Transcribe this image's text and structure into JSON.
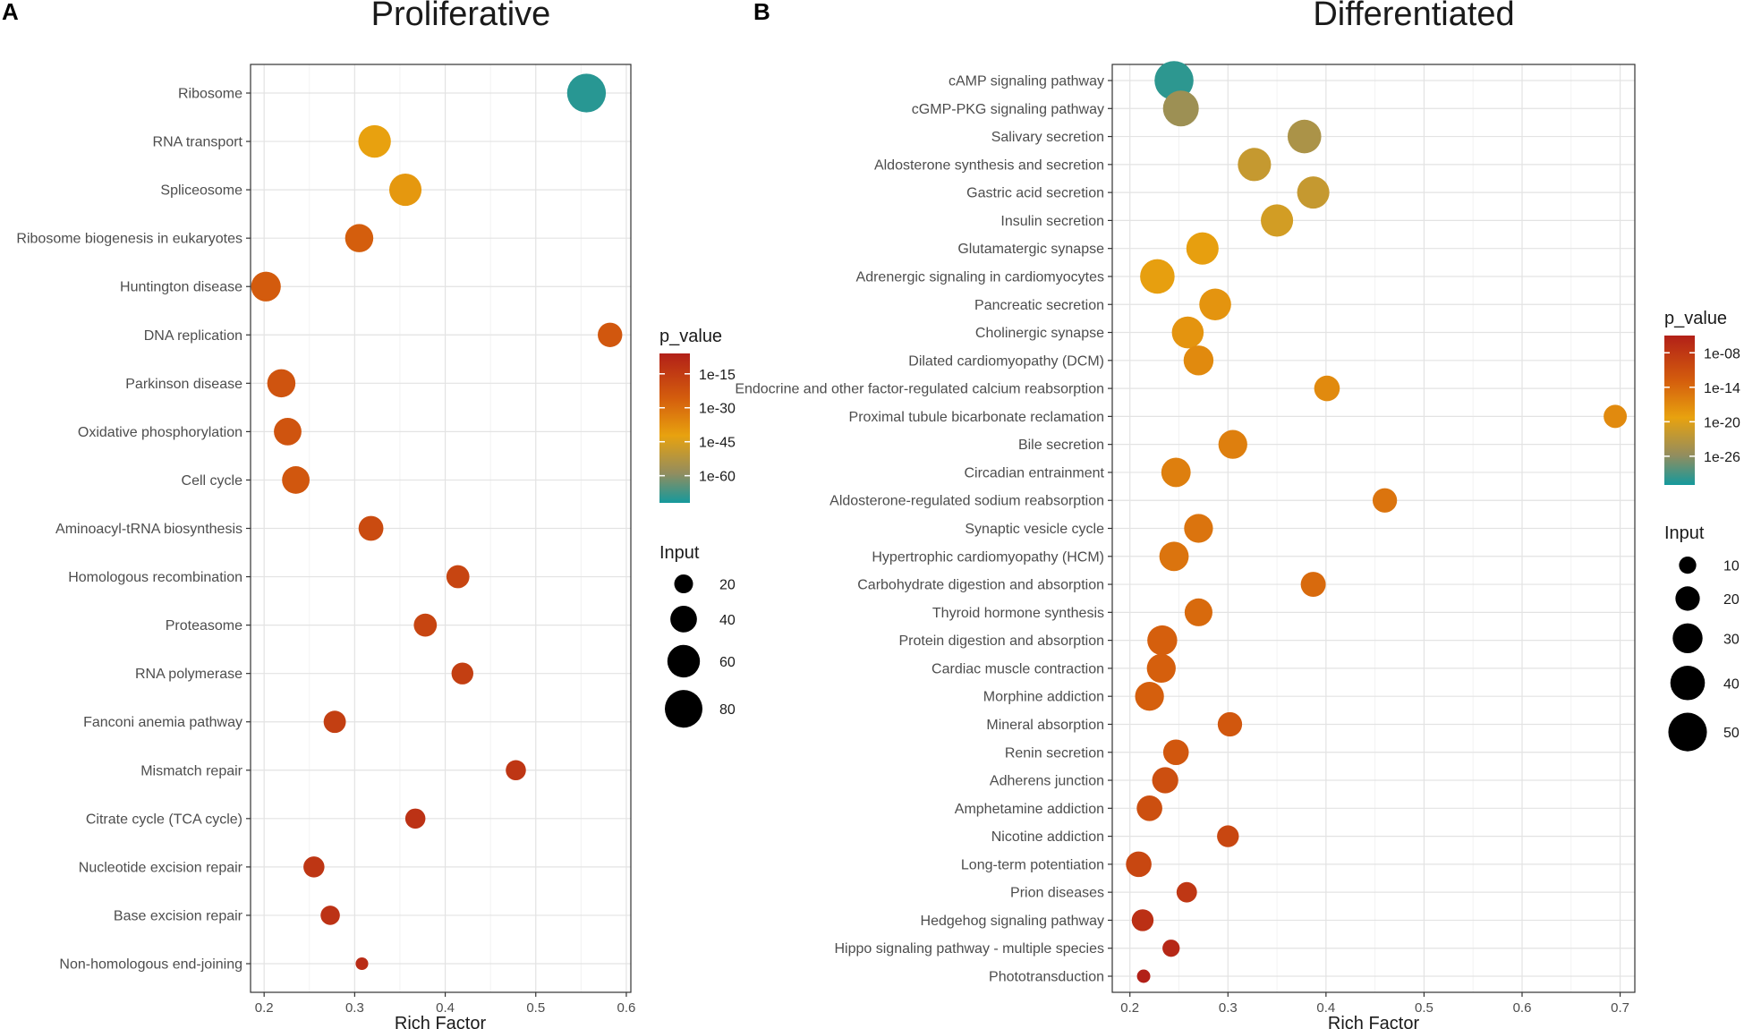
{
  "chart_data": [
    {
      "type": "scatter",
      "panel": "A",
      "title": "Proliferative",
      "xlabel": "Rich Factor",
      "ylabel": "",
      "xlim": [
        0.185,
        0.605
      ],
      "xticks": [
        "0.2",
        "0.3",
        "0.4",
        "0.5",
        "0.6"
      ],
      "color_legend": {
        "title": "p_value",
        "ticks": [
          "1e-15",
          "1e-30",
          "1e-45",
          "1e-60"
        ],
        "log10_range": [
          -6,
          -72
        ]
      },
      "size_legend": {
        "title": "Input",
        "values": [
          20,
          40,
          60,
          80
        ],
        "labels": [
          "20",
          "40",
          "60",
          "80"
        ]
      },
      "points": [
        {
          "term": "Ribosome",
          "x": 0.556,
          "input": 85,
          "p_log10": -70
        },
        {
          "term": "RNA transport",
          "x": 0.322,
          "input": 60,
          "p_log10": -42
        },
        {
          "term": "Spliceosome",
          "x": 0.356,
          "input": 59,
          "p_log10": -40
        },
        {
          "term": "Ribosome biogenesis in eukaryotes",
          "x": 0.305,
          "input": 45,
          "p_log10": -26
        },
        {
          "term": "Huntington disease",
          "x": 0.202,
          "input": 50,
          "p_log10": -25
        },
        {
          "term": "DNA replication",
          "x": 0.582,
          "input": 34,
          "p_log10": -24
        },
        {
          "term": "Parkinson disease",
          "x": 0.219,
          "input": 45,
          "p_log10": -23
        },
        {
          "term": "Oxidative phosphorylation",
          "x": 0.226,
          "input": 43,
          "p_log10": -23
        },
        {
          "term": "Cell cycle",
          "x": 0.235,
          "input": 43,
          "p_log10": -24
        },
        {
          "term": "Aminoacyl-tRNA biosynthesis",
          "x": 0.318,
          "input": 35,
          "p_log10": -20
        },
        {
          "term": "Homologous recombination",
          "x": 0.414,
          "input": 30,
          "p_log10": -18
        },
        {
          "term": "Proteasome",
          "x": 0.378,
          "input": 30,
          "p_log10": -18
        },
        {
          "term": "RNA polymerase",
          "x": 0.419,
          "input": 27,
          "p_log10": -16
        },
        {
          "term": "Fanconi anemia pathway",
          "x": 0.278,
          "input": 28,
          "p_log10": -16
        },
        {
          "term": "Mismatch repair",
          "x": 0.478,
          "input": 23,
          "p_log10": -13
        },
        {
          "term": "Citrate cycle (TCA cycle)",
          "x": 0.367,
          "input": 23,
          "p_log10": -12
        },
        {
          "term": "Nucleotide excision repair",
          "x": 0.255,
          "input": 25,
          "p_log10": -13
        },
        {
          "term": "Base excision repair",
          "x": 0.273,
          "input": 21,
          "p_log10": -12
        },
        {
          "term": "Non-homologous end-joining",
          "x": 0.308,
          "input": 9,
          "p_log10": -10
        }
      ]
    },
    {
      "type": "scatter",
      "panel": "B",
      "title": "Differentiated",
      "xlabel": "Rich Factor",
      "ylabel": "",
      "xlim": [
        0.182,
        0.715
      ],
      "xticks": [
        "0.2",
        "0.3",
        "0.4",
        "0.5",
        "0.6",
        "0.7"
      ],
      "color_legend": {
        "title": "p_value",
        "ticks": [
          "1e-08",
          "1e-14",
          "1e-20",
          "1e-26"
        ],
        "log10_range": [
          -5,
          -31
        ]
      },
      "size_legend": {
        "title": "Input",
        "values": [
          10,
          20,
          30,
          40,
          50
        ],
        "labels": [
          "10",
          "20",
          "30",
          "40",
          "50"
        ]
      },
      "points": [
        {
          "term": "cAMP signaling pathway",
          "x": 0.245,
          "input": 51,
          "p_log10": -30
        },
        {
          "term": "cGMP-PKG signaling pathway",
          "x": 0.252,
          "input": 43,
          "p_log10": -25
        },
        {
          "term": "Salivary secretion",
          "x": 0.378,
          "input": 38,
          "p_log10": -24
        },
        {
          "term": "Aldosterone synthesis and secretion",
          "x": 0.327,
          "input": 37,
          "p_log10": -22
        },
        {
          "term": "Gastric acid secretion",
          "x": 0.387,
          "input": 35,
          "p_log10": -22
        },
        {
          "term": "Insulin secretion",
          "x": 0.35,
          "input": 35,
          "p_log10": -21
        },
        {
          "term": "Glutamatergic synapse",
          "x": 0.274,
          "input": 35,
          "p_log10": -19
        },
        {
          "term": "Adrenergic signaling in cardiomyocytes",
          "x": 0.228,
          "input": 40,
          "p_log10": -19
        },
        {
          "term": "Pancreatic secretion",
          "x": 0.287,
          "input": 34,
          "p_log10": -18
        },
        {
          "term": "Cholinergic synapse",
          "x": 0.259,
          "input": 34,
          "p_log10": -18
        },
        {
          "term": "Dilated cardiomyopathy (DCM)",
          "x": 0.27,
          "input": 30,
          "p_log10": -17
        },
        {
          "term": "Endocrine and other factor-regulated calcium reabsorption",
          "x": 0.401,
          "input": 22,
          "p_log10": -17
        },
        {
          "term": "Proximal tubule bicarbonate reclamation",
          "x": 0.695,
          "input": 18,
          "p_log10": -17
        },
        {
          "term": "Bile secretion",
          "x": 0.305,
          "input": 28,
          "p_log10": -16
        },
        {
          "term": "Circadian entrainment",
          "x": 0.247,
          "input": 29,
          "p_log10": -16
        },
        {
          "term": "Aldosterone-regulated sodium reabsorption",
          "x": 0.46,
          "input": 20,
          "p_log10": -15
        },
        {
          "term": "Synaptic vesicle cycle",
          "x": 0.27,
          "input": 28,
          "p_log10": -15
        },
        {
          "term": "Hypertrophic cardiomyopathy (HCM)",
          "x": 0.245,
          "input": 29,
          "p_log10": -15
        },
        {
          "term": "Carbohydrate digestion and absorption",
          "x": 0.387,
          "input": 21,
          "p_log10": -14
        },
        {
          "term": "Thyroid hormone synthesis",
          "x": 0.27,
          "input": 26,
          "p_log10": -14
        },
        {
          "term": "Protein digestion and absorption",
          "x": 0.233,
          "input": 30,
          "p_log10": -13
        },
        {
          "term": "Cardiac muscle contraction",
          "x": 0.232,
          "input": 28,
          "p_log10": -13
        },
        {
          "term": "Morphine addiction",
          "x": 0.22,
          "input": 28,
          "p_log10": -13
        },
        {
          "term": "Mineral absorption",
          "x": 0.302,
          "input": 20,
          "p_log10": -12
        },
        {
          "term": "Renin secretion",
          "x": 0.247,
          "input": 22,
          "p_log10": -12
        },
        {
          "term": "Adherens junction",
          "x": 0.236,
          "input": 23,
          "p_log10": -11
        },
        {
          "term": "Amphetamine addiction",
          "x": 0.22,
          "input": 22,
          "p_log10": -11
        },
        {
          "term": "Nicotine addiction",
          "x": 0.3,
          "input": 16,
          "p_log10": -10
        },
        {
          "term": "Long-term potentiation",
          "x": 0.209,
          "input": 22,
          "p_log10": -10
        },
        {
          "term": "Prion diseases",
          "x": 0.258,
          "input": 14,
          "p_log10": -8
        },
        {
          "term": "Hedgehog signaling pathway",
          "x": 0.213,
          "input": 16,
          "p_log10": -7
        },
        {
          "term": "Hippo signaling pathway - multiple species",
          "x": 0.242,
          "input": 10,
          "p_log10": -6
        },
        {
          "term": "Phototransduction",
          "x": 0.214,
          "input": 6,
          "p_log10": -5
        }
      ]
    }
  ]
}
